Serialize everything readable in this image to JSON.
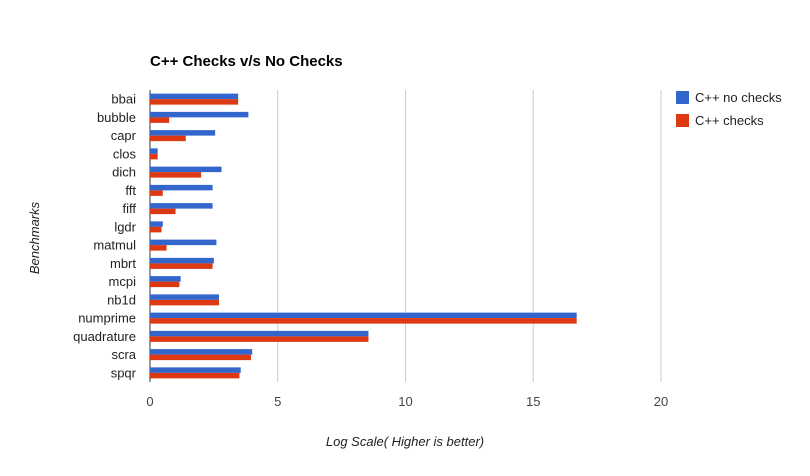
{
  "chart_data": {
    "type": "bar",
    "orientation": "horizontal",
    "title": "C++ Checks v/s No Checks",
    "xlabel": "Log Scale( Higher is better)",
    "ylabel": "Benchmarks",
    "xlim": [
      0,
      20
    ],
    "x_ticks": [
      "0",
      "5",
      "10",
      "15",
      "20"
    ],
    "grid": true,
    "legend_position": "right",
    "categories": [
      "bbai",
      "bubble",
      "capr",
      "clos",
      "dich",
      "fft",
      "fiff",
      "lgdr",
      "matmul",
      "mbrt",
      "mcpi",
      "nb1d",
      "numprime",
      "quadrature",
      "scra",
      "spqr"
    ],
    "series": [
      {
        "name": "C++ no checks",
        "color": "#3366cc",
        "values": [
          3.45,
          3.85,
          2.55,
          0.3,
          2.8,
          2.45,
          2.45,
          0.5,
          2.6,
          2.5,
          1.2,
          2.7,
          16.7,
          8.55,
          4.0,
          3.55
        ]
      },
      {
        "name": "C++ checks",
        "color": "#dc3912",
        "values": [
          3.45,
          0.75,
          1.4,
          0.3,
          2.0,
          0.5,
          1.0,
          0.45,
          0.65,
          2.45,
          1.15,
          2.7,
          16.7,
          8.55,
          3.95,
          3.5
        ]
      }
    ]
  }
}
